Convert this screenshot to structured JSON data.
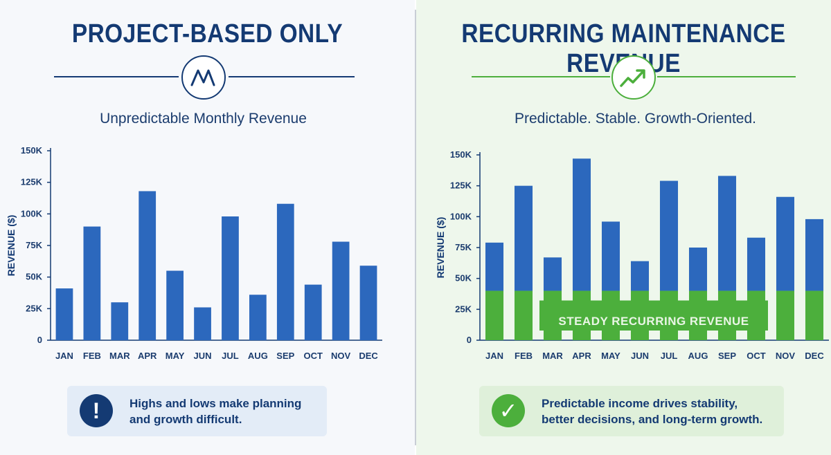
{
  "left": {
    "title": "PROJECT-BASED ONLY",
    "subtitle": "Unpredictable Monthly Revenue",
    "emblem_icon": "zigzag-line-icon",
    "callout_icon": "exclamation-icon",
    "callout_symbol": "!",
    "callout_lines": [
      "Highs and lows make planning",
      "and growth difficult."
    ]
  },
  "right": {
    "title": "RECURRING MAINTENANCE REVENUE",
    "subtitle": "Predictable. Stable. Growth-Oriented.",
    "emblem_icon": "trending-up-arrow-icon",
    "callout_icon": "checkmark-icon",
    "callout_symbol": "✓",
    "callout_lines": [
      "Predictable income drives stability,",
      "better decisions, and long-term growth."
    ]
  },
  "colors": {
    "navy": "#143a73",
    "bar_blue": "#2c68bd",
    "bar_green": "#4caf3c",
    "accent_green": "#4caf3c"
  },
  "chart_data": [
    {
      "type": "bar",
      "categories": [
        "JAN",
        "FEB",
        "MAR",
        "APR",
        "MAY",
        "JUN",
        "JUL",
        "AUG",
        "SEP",
        "OCT",
        "NOV",
        "DEC"
      ],
      "values": [
        41000,
        90000,
        30000,
        118000,
        55000,
        26000,
        98000,
        36000,
        108000,
        44000,
        78000,
        59000
      ],
      "ylabel": "REVENUE ($)",
      "ylim": [
        0,
        150000
      ],
      "yticks": [
        "0",
        "25K",
        "50K",
        "75K",
        "100K",
        "125K",
        "150K"
      ],
      "grid": false
    },
    {
      "type": "bar",
      "stacked": true,
      "categories": [
        "JAN",
        "FEB",
        "MAR",
        "APR",
        "MAY",
        "JUN",
        "JUL",
        "AUG",
        "SEP",
        "OCT",
        "NOV",
        "DEC"
      ],
      "series": [
        {
          "values": [
            40000,
            40000,
            40000,
            40000,
            40000,
            40000,
            40000,
            40000,
            40000,
            40000,
            40000,
            40000
          ]
        },
        {
          "values": [
            39000,
            85000,
            27000,
            107000,
            56000,
            24000,
            89000,
            35000,
            93000,
            43000,
            76000,
            58000
          ]
        }
      ],
      "totals": [
        79000,
        125000,
        67000,
        147000,
        96000,
        64000,
        129000,
        75000,
        133000,
        83000,
        116000,
        98000
      ],
      "annotation": "STEADY RECURRING REVENUE",
      "ylabel": "REVENUE ($)",
      "ylim": [
        0,
        150000
      ],
      "yticks": [
        "0",
        "25K",
        "50K",
        "75K",
        "100K",
        "125K",
        "150K"
      ],
      "grid": false
    }
  ]
}
